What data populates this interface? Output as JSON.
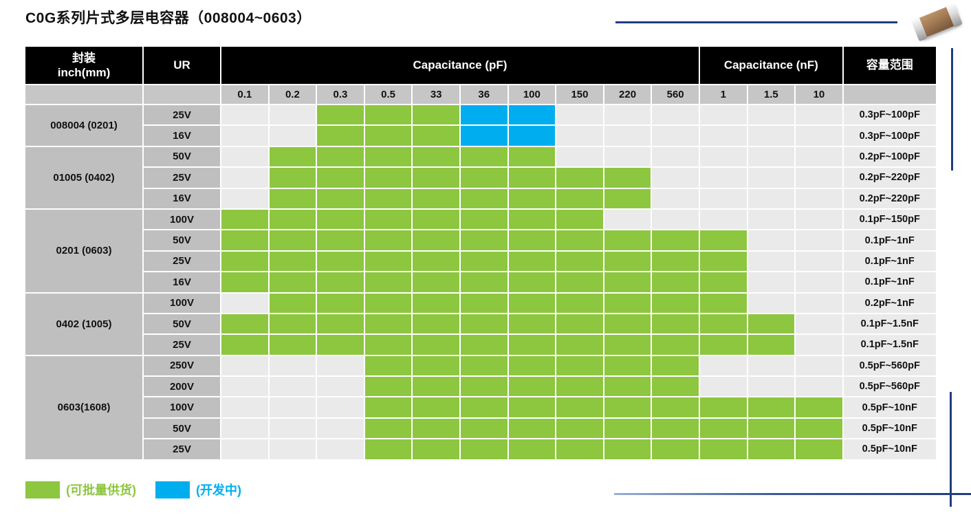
{
  "title": "C0G系列片式多层电容器（008004~0603）",
  "table": {
    "col_headers": {
      "package_line1": "封装",
      "package_line2": "inch(mm)",
      "ur": "UR",
      "cap_pf": "Capacitance (pF)",
      "cap_nf": "Capacitance (nF)",
      "range": "容量范围"
    },
    "pf_values": [
      "0.1",
      "0.2",
      "0.3",
      "0.5",
      "33",
      "36",
      "100",
      "150",
      "220",
      "560"
    ],
    "nf_values": [
      "1",
      "1.5",
      "10"
    ],
    "cell_states": {
      "g": "可批量供货",
      "b": "开发中",
      "": "无"
    },
    "groups": [
      {
        "package": "008004 (0201)",
        "rows": [
          {
            "ur": "25V",
            "cells": [
              "",
              "",
              "g",
              "g",
              "g",
              "b",
              "b",
              "",
              "",
              "",
              "",
              "",
              ""
            ],
            "range": "0.3pF~100pF"
          },
          {
            "ur": "16V",
            "cells": [
              "",
              "",
              "g",
              "g",
              "g",
              "b",
              "b",
              "",
              "",
              "",
              "",
              "",
              ""
            ],
            "range": "0.3pF~100pF"
          }
        ]
      },
      {
        "package": "01005 (0402)",
        "rows": [
          {
            "ur": "50V",
            "cells": [
              "",
              "g",
              "g",
              "g",
              "g",
              "g",
              "g",
              "",
              "",
              "",
              "",
              "",
              ""
            ],
            "range": "0.2pF~100pF"
          },
          {
            "ur": "25V",
            "cells": [
              "",
              "g",
              "g",
              "g",
              "g",
              "g",
              "g",
              "g",
              "g",
              "",
              "",
              "",
              ""
            ],
            "range": "0.2pF~220pF"
          },
          {
            "ur": "16V",
            "cells": [
              "",
              "g",
              "g",
              "g",
              "g",
              "g",
              "g",
              "g",
              "g",
              "",
              "",
              "",
              ""
            ],
            "range": "0.2pF~220pF"
          }
        ]
      },
      {
        "package": "0201 (0603)",
        "rows": [
          {
            "ur": "100V",
            "cells": [
              "g",
              "g",
              "g",
              "g",
              "g",
              "g",
              "g",
              "g",
              "",
              "",
              "",
              "",
              ""
            ],
            "range": "0.1pF~150pF"
          },
          {
            "ur": "50V",
            "cells": [
              "g",
              "g",
              "g",
              "g",
              "g",
              "g",
              "g",
              "g",
              "g",
              "g",
              "g",
              "",
              ""
            ],
            "range": "0.1pF~1nF"
          },
          {
            "ur": "25V",
            "cells": [
              "g",
              "g",
              "g",
              "g",
              "g",
              "g",
              "g",
              "g",
              "g",
              "g",
              "g",
              "",
              ""
            ],
            "range": "0.1pF~1nF"
          },
          {
            "ur": "16V",
            "cells": [
              "g",
              "g",
              "g",
              "g",
              "g",
              "g",
              "g",
              "g",
              "g",
              "g",
              "g",
              "",
              ""
            ],
            "range": "0.1pF~1nF"
          }
        ]
      },
      {
        "package": "0402 (1005)",
        "rows": [
          {
            "ur": "100V",
            "cells": [
              "",
              "g",
              "g",
              "g",
              "g",
              "g",
              "g",
              "g",
              "g",
              "g",
              "g",
              "",
              ""
            ],
            "range": "0.2pF~1nF"
          },
          {
            "ur": "50V",
            "cells": [
              "g",
              "g",
              "g",
              "g",
              "g",
              "g",
              "g",
              "g",
              "g",
              "g",
              "g",
              "g",
              ""
            ],
            "range": "0.1pF~1.5nF"
          },
          {
            "ur": "25V",
            "cells": [
              "g",
              "g",
              "g",
              "g",
              "g",
              "g",
              "g",
              "g",
              "g",
              "g",
              "g",
              "g",
              ""
            ],
            "range": "0.1pF~1.5nF"
          }
        ]
      },
      {
        "package": "0603(1608)",
        "rows": [
          {
            "ur": "250V",
            "cells": [
              "",
              "",
              "",
              "g",
              "g",
              "g",
              "g",
              "g",
              "g",
              "g",
              "",
              "",
              ""
            ],
            "range": "0.5pF~560pF"
          },
          {
            "ur": "200V",
            "cells": [
              "",
              "",
              "",
              "g",
              "g",
              "g",
              "g",
              "g",
              "g",
              "g",
              "",
              "",
              ""
            ],
            "range": "0.5pF~560pF"
          },
          {
            "ur": "100V",
            "cells": [
              "",
              "",
              "",
              "g",
              "g",
              "g",
              "g",
              "g",
              "g",
              "g",
              "g",
              "g",
              "g"
            ],
            "range": "0.5pF~10nF"
          },
          {
            "ur": "50V",
            "cells": [
              "",
              "",
              "",
              "g",
              "g",
              "g",
              "g",
              "g",
              "g",
              "g",
              "g",
              "g",
              "g"
            ],
            "range": "0.5pF~10nF"
          },
          {
            "ur": "25V",
            "cells": [
              "",
              "",
              "",
              "g",
              "g",
              "g",
              "g",
              "g",
              "g",
              "g",
              "g",
              "g",
              "g"
            ],
            "range": "0.5pF~10nF"
          }
        ]
      }
    ]
  },
  "legend": [
    {
      "state": "g",
      "label": "(可批量供货)",
      "color": "#8DC63F"
    },
    {
      "state": "b",
      "label": "(开发中)",
      "color": "#00AEEF"
    }
  ],
  "colors": {
    "green": "#8DC63F",
    "blue": "#00AEEF",
    "header_bg": "#000000",
    "header_text": "#FFFFFF",
    "label_bg": "#BFBFBF",
    "subheader_bg": "#C6C6C6",
    "empty_cell": "#EAEAEA",
    "accent_line": "#1F3D7C"
  }
}
